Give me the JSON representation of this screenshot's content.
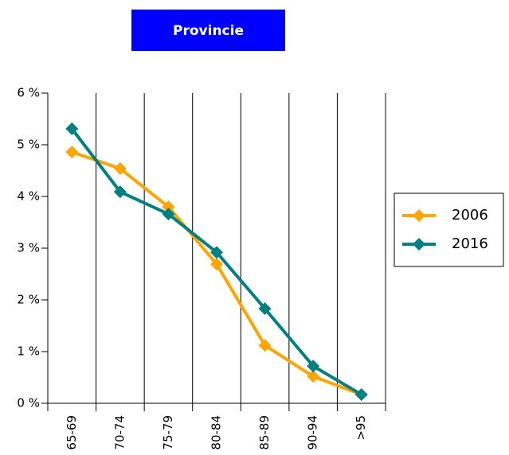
{
  "chart_data": {
    "type": "line",
    "title": "Provincie",
    "categories": [
      "65-69",
      "70-74",
      "75-79",
      "80-84",
      "85-89",
      "90-94",
      ">95"
    ],
    "series": [
      {
        "name": "2006",
        "color": "#ffa500",
        "values": [
          4.86,
          4.54,
          3.8,
          2.69,
          1.12,
          0.52,
          0.17
        ]
      },
      {
        "name": "2016",
        "color": "#008080",
        "values": [
          5.31,
          4.09,
          3.66,
          2.92,
          1.83,
          0.72,
          0.17
        ]
      }
    ],
    "ylim": [
      0,
      6
    ],
    "yticks": [
      {
        "value": 0,
        "label": "0 %"
      },
      {
        "value": 1,
        "label": "1 %"
      },
      {
        "value": 2,
        "label": "2 %"
      },
      {
        "value": 3,
        "label": "3 %"
      },
      {
        "value": 4,
        "label": "4 %"
      },
      {
        "value": 5,
        "label": "5 %"
      },
      {
        "value": 6,
        "label": "6 %"
      }
    ],
    "grid": true,
    "legend": "right"
  }
}
